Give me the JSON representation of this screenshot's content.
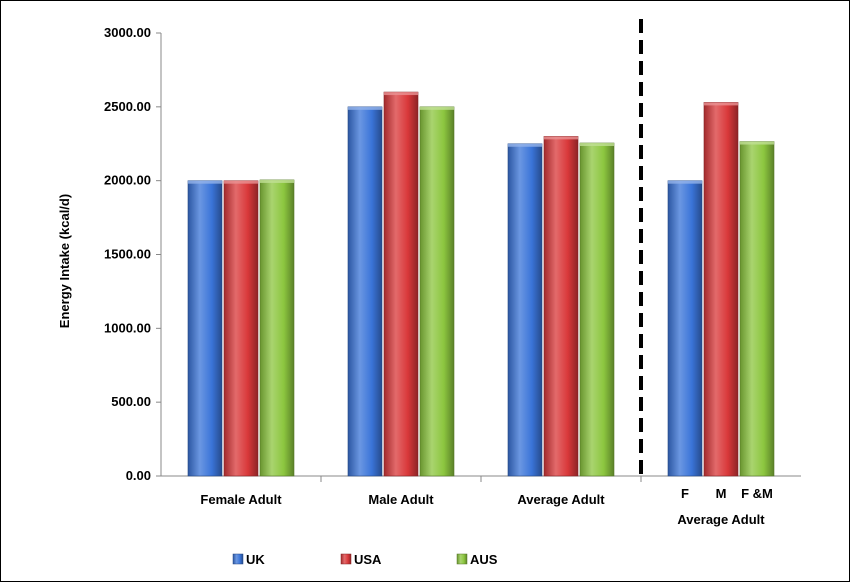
{
  "chart_data": {
    "type": "bar",
    "ylabel": "Energy Intake (kcal/d)",
    "ylim": [
      0,
      3000
    ],
    "ytick_step": 500,
    "ytick_labels": [
      "0.00",
      "500.00",
      "1000.00",
      "1500.00",
      "2000.00",
      "2500.00",
      "3000.00"
    ],
    "grid": false,
    "legend_position": "bottom",
    "groups": [
      {
        "label": "Female Adult",
        "bars": [
          {
            "series": "UK",
            "value": 2000
          },
          {
            "series": "USA",
            "value": 2000
          },
          {
            "series": "AUS",
            "value": 2005
          }
        ]
      },
      {
        "label": "Male Adult",
        "bars": [
          {
            "series": "UK",
            "value": 2500
          },
          {
            "series": "USA",
            "value": 2600
          },
          {
            "series": "AUS",
            "value": 2500
          }
        ]
      },
      {
        "label": "Average Adult",
        "bars": [
          {
            "series": "UK",
            "value": 2250
          },
          {
            "series": "USA",
            "value": 2300
          },
          {
            "series": "AUS",
            "value": 2255
          }
        ]
      },
      {
        "label": "Average Adult",
        "sublabels": [
          "F",
          "M",
          "F &M"
        ],
        "bars": [
          {
            "series": "UK",
            "value": 2000
          },
          {
            "series": "USA",
            "value": 2530
          },
          {
            "series": "AUS",
            "value": 2265
          }
        ]
      }
    ],
    "series": [
      {
        "name": "UK",
        "color": "#3a74d8"
      },
      {
        "name": "USA",
        "color": "#d9383a"
      },
      {
        "name": "AUS",
        "color": "#8cc63f"
      }
    ]
  }
}
